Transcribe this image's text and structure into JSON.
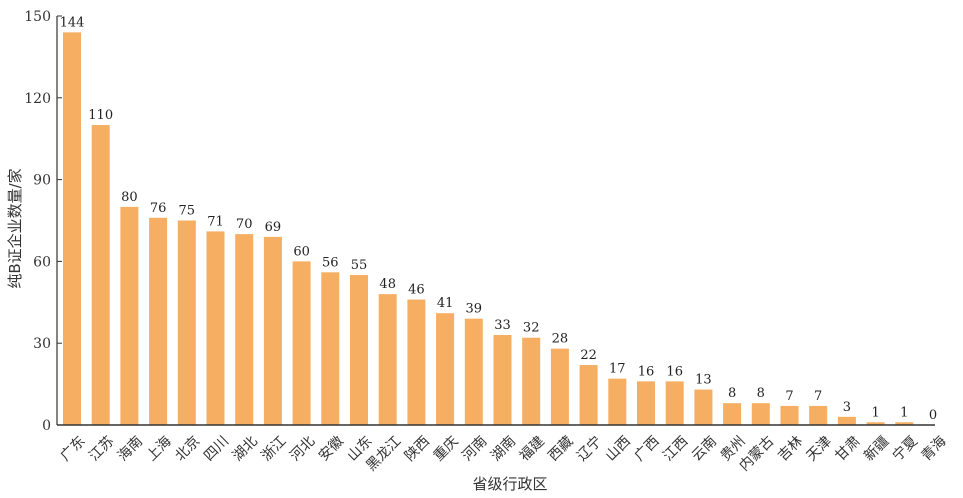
{
  "chart_data": {
    "type": "bar",
    "xlabel": "省级行政区",
    "ylabel": "纯B证企业数量/家",
    "ylim": [
      0,
      150
    ],
    "yticks": [
      0,
      30,
      60,
      90,
      120,
      150
    ],
    "grid": false,
    "bar_color": "#F5AE62",
    "categories": [
      "广东",
      "江苏",
      "海南",
      "上海",
      "北京",
      "四川",
      "湖北",
      "浙江",
      "河北",
      "安徽",
      "山东",
      "黑龙江",
      "陕西",
      "重庆",
      "河南",
      "湖南",
      "福建",
      "西藏",
      "辽宁",
      "山西",
      "广西",
      "江西",
      "云南",
      "贵州",
      "内蒙古",
      "吉林",
      "天津",
      "甘肃",
      "新疆",
      "宁夏",
      "青海"
    ],
    "values": [
      144,
      110,
      80,
      76,
      75,
      71,
      70,
      69,
      60,
      56,
      55,
      48,
      46,
      41,
      39,
      33,
      32,
      28,
      22,
      17,
      16,
      16,
      13,
      8,
      8,
      7,
      7,
      3,
      1,
      1,
      0
    ]
  }
}
